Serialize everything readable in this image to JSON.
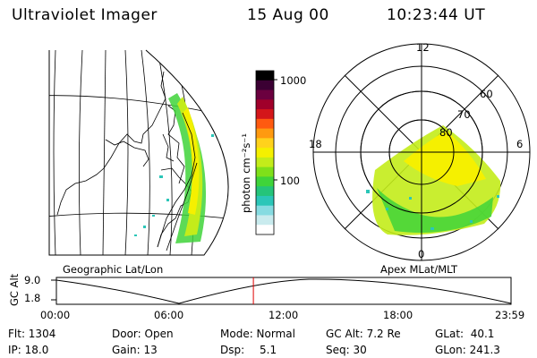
{
  "header": {
    "instrument": "Ultraviolet Imager",
    "date": "15 Aug 00",
    "time": "10:23:44 UT"
  },
  "colorbar": {
    "label": "photon cm⁻²s⁻¹",
    "ticks": [
      "1000",
      "100"
    ],
    "colors": [
      "#000000",
      "#3b0033",
      "#6b003f",
      "#a0002a",
      "#d4161a",
      "#ff5a10",
      "#ff9a10",
      "#ffd21c",
      "#f5f000",
      "#c3ec1a",
      "#7fe01a",
      "#3fd43a",
      "#25c47a",
      "#2bc6b8",
      "#86dbe1",
      "#c9ebee",
      "#ffffff"
    ]
  },
  "geo_map": {
    "label": "Geographic Lat/Lon"
  },
  "polar_plot": {
    "label": "Apex MLat/MLT",
    "mlt_labels": [
      "12",
      "18",
      "6",
      "0"
    ],
    "lat_labels": [
      "60",
      "70",
      "80"
    ]
  },
  "altitude_plot": {
    "ylabel": "GC Alt",
    "y_ticks": [
      "9.0",
      "1.8"
    ],
    "x_ticks": [
      "00:00",
      "06:00",
      "12:00",
      "18:00",
      "23:59"
    ],
    "current_time_fraction": 0.4332
  },
  "status": {
    "flt": "Flt: 1304",
    "ip": "IP: 18.0",
    "door": "Door: Open",
    "gain": "Gain: 13",
    "mode": "Mode: Normal",
    "dsp_label": "Dsp:",
    "dsp_value": "5.1",
    "gc_alt": "GC Alt: 7.2 Re",
    "seq": "Seq: 30",
    "glat": "GLat:  40.1",
    "glon": "GLon: 241.3"
  }
}
